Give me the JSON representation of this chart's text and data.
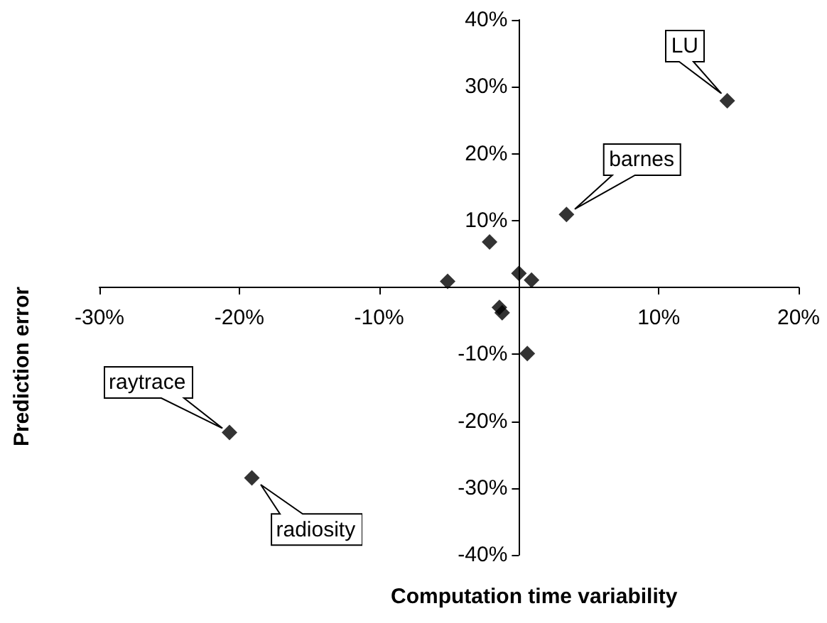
{
  "chart_data": {
    "type": "scatter",
    "xlabel": "Computation time variability",
    "ylabel": "Prediction error",
    "x": [
      14.9,
      3.4,
      -2.1,
      -5.1,
      0.0,
      0.9,
      -1.4,
      -1.2,
      0.6,
      -20.7,
      -19.1
    ],
    "values": [
      27.9,
      10.9,
      6.8,
      0.9,
      2.1,
      1.1,
      -3.0,
      -3.8,
      -9.9,
      -21.7,
      -28.5
    ],
    "color": "#000000",
    "marker": "diamond",
    "grid": false,
    "xlim": [
      -30,
      20
    ],
    "xticks": [
      {
        "value": -30,
        "label": "-30%"
      },
      {
        "value": -20,
        "label": "-20%"
      },
      {
        "value": -10,
        "label": "-10%"
      },
      {
        "value": 10,
        "label": "10%"
      },
      {
        "value": 20,
        "label": "20%"
      }
    ],
    "ylim": [
      -40,
      40
    ],
    "yticks": [
      {
        "value": -40,
        "label": "-40%"
      },
      {
        "value": -30,
        "label": "-30%"
      },
      {
        "value": -20,
        "label": "-20%"
      },
      {
        "value": -10,
        "label": "-10%"
      },
      {
        "value": 10,
        "label": "10%"
      },
      {
        "value": 20,
        "label": "20%"
      },
      {
        "value": 30,
        "label": "30%"
      },
      {
        "value": 40,
        "label": "40%"
      }
    ],
    "annotations": [
      {
        "text": "LU",
        "x": 14.9,
        "y": 27.9
      },
      {
        "text": "barnes",
        "x": 3.4,
        "y": 10.9
      },
      {
        "text": "raytrace",
        "x": -20.7,
        "y": -21.7
      },
      {
        "text": "radiosity",
        "x": -19.1,
        "y": -28.5
      }
    ]
  }
}
